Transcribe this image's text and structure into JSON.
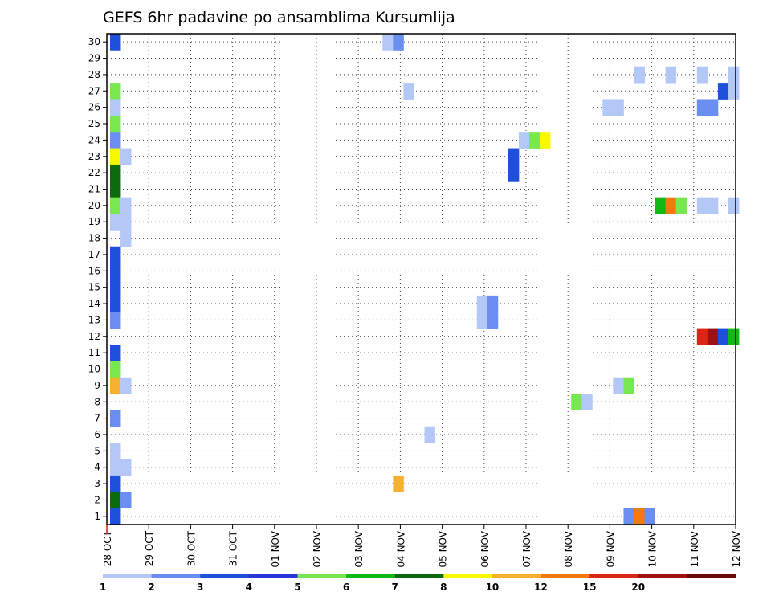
{
  "chart_data": {
    "type": "heatmap",
    "title": "GEFS 6hr padavine po ansamblima Kursumlija",
    "x_labels": [
      "28 OCT",
      "29 OCT",
      "30 OCT",
      "31 OCT",
      "01 NOV",
      "02 NOV",
      "03 NOV",
      "04 NOV",
      "05 NOV",
      "06 NOV",
      "07 NOV",
      "08 NOV",
      "09 NOV",
      "10 NOV",
      "11 NOV",
      "12 NOV"
    ],
    "y_labels": [
      "1",
      "2",
      "3",
      "4",
      "5",
      "6",
      "7",
      "8",
      "9",
      "10",
      "11",
      "12",
      "13",
      "14",
      "15",
      "16",
      "17",
      "18",
      "19",
      "20",
      "21",
      "22",
      "23",
      "24",
      "25",
      "26",
      "27",
      "28",
      "29",
      "30"
    ],
    "x_unit": "6-hour step index from 28 OCT 00",
    "y_unit": "ensemble member",
    "grid": true,
    "colorbar": {
      "labels": [
        "1",
        "2",
        "3",
        "4",
        "5",
        "6",
        "7",
        "8",
        "10",
        "12",
        "15",
        "20"
      ],
      "colors": [
        "#b4c8f8",
        "#6a8ff0",
        "#1e50dc",
        "#2838d8",
        "#78e850",
        "#14b814",
        "#0a6c0a",
        "#f8f800",
        "#f8b030",
        "#f87810",
        "#d82814",
        "#a01010",
        "#6e0a0a"
      ]
    },
    "cells": [
      {
        "m": 30,
        "t": 0,
        "c": 3
      },
      {
        "m": 27,
        "t": 0,
        "c": 5
      },
      {
        "m": 26,
        "t": 0,
        "c": 1
      },
      {
        "m": 25,
        "t": 0,
        "c": 5
      },
      {
        "m": 24,
        "t": 0,
        "c": 2
      },
      {
        "m": 23,
        "t": 0,
        "c": 8
      },
      {
        "m": 23,
        "t": 1,
        "c": 1
      },
      {
        "m": 22,
        "t": 0,
        "c": 7
      },
      {
        "m": 21,
        "t": 0,
        "c": 7
      },
      {
        "m": 20,
        "t": 0,
        "c": 5
      },
      {
        "m": 20,
        "t": 1,
        "c": 1
      },
      {
        "m": 19,
        "t": 0,
        "c": 1
      },
      {
        "m": 19,
        "t": 1,
        "c": 1
      },
      {
        "m": 18,
        "t": 1,
        "c": 1
      },
      {
        "m": 17,
        "t": 0,
        "c": 3
      },
      {
        "m": 16,
        "t": 0,
        "c": 3
      },
      {
        "m": 15,
        "t": 0,
        "c": 3
      },
      {
        "m": 14,
        "t": 0,
        "c": 3
      },
      {
        "m": 13,
        "t": 0,
        "c": 2
      },
      {
        "m": 11,
        "t": 0,
        "c": 3
      },
      {
        "m": 10,
        "t": 0,
        "c": 5
      },
      {
        "m": 9,
        "t": 0,
        "c": 9
      },
      {
        "m": 9,
        "t": 1,
        "c": 1
      },
      {
        "m": 7,
        "t": 0,
        "c": 2
      },
      {
        "m": 5,
        "t": 0,
        "c": 1
      },
      {
        "m": 4,
        "t": 0,
        "c": 1
      },
      {
        "m": 4,
        "t": 1,
        "c": 1
      },
      {
        "m": 3,
        "t": 0,
        "c": 3
      },
      {
        "m": 2,
        "t": 0,
        "c": 7
      },
      {
        "m": 2,
        "t": 1,
        "c": 2
      },
      {
        "m": 1,
        "t": 0,
        "c": 3
      },
      {
        "m": 30,
        "t": 26,
        "c": 1
      },
      {
        "m": 30,
        "t": 27,
        "c": 2
      },
      {
        "m": 27,
        "t": 28,
        "c": 1
      },
      {
        "m": 3,
        "t": 27,
        "c": 9
      },
      {
        "m": 6,
        "t": 30,
        "c": 1
      },
      {
        "m": 14,
        "t": 35,
        "c": 1
      },
      {
        "m": 13,
        "t": 35,
        "c": 1
      },
      {
        "m": 14,
        "t": 36,
        "c": 2
      },
      {
        "m": 13,
        "t": 36,
        "c": 2
      },
      {
        "m": 23,
        "t": 38,
        "c": 3
      },
      {
        "m": 22,
        "t": 38,
        "c": 3
      },
      {
        "m": 24,
        "t": 39,
        "c": 1
      },
      {
        "m": 24,
        "t": 40,
        "c": 5
      },
      {
        "m": 24,
        "t": 41,
        "c": 8
      },
      {
        "m": 8,
        "t": 44,
        "c": 5
      },
      {
        "m": 8,
        "t": 45,
        "c": 1
      },
      {
        "m": 26,
        "t": 47,
        "c": 1
      },
      {
        "m": 26,
        "t": 48,
        "c": 1
      },
      {
        "m": 9,
        "t": 48,
        "c": 1
      },
      {
        "m": 9,
        "t": 49,
        "c": 5
      },
      {
        "m": 1,
        "t": 49,
        "c": 2
      },
      {
        "m": 1,
        "t": 50,
        "c": 10
      },
      {
        "m": 1,
        "t": 51,
        "c": 2
      },
      {
        "m": 28,
        "t": 50,
        "c": 1
      },
      {
        "m": 28,
        "t": 53,
        "c": 1
      },
      {
        "m": 20,
        "t": 52,
        "c": 6
      },
      {
        "m": 20,
        "t": 53,
        "c": 10
      },
      {
        "m": 20,
        "t": 54,
        "c": 5
      },
      {
        "m": 28,
        "t": 56,
        "c": 1
      },
      {
        "m": 26,
        "t": 56,
        "c": 2
      },
      {
        "m": 26,
        "t": 57,
        "c": 2
      },
      {
        "m": 20,
        "t": 56,
        "c": 1
      },
      {
        "m": 20,
        "t": 57,
        "c": 1
      },
      {
        "m": 20,
        "t": 59,
        "c": 1
      },
      {
        "m": 27,
        "t": 58,
        "c": 3
      },
      {
        "m": 27,
        "t": 59,
        "c": 1
      },
      {
        "m": 28,
        "t": 59,
        "c": 1
      },
      {
        "m": 12,
        "t": 56,
        "c": 11
      },
      {
        "m": 12,
        "t": 57,
        "c": 12
      },
      {
        "m": 12,
        "t": 58,
        "c": 3
      },
      {
        "m": 12,
        "t": 59,
        "c": 6
      }
    ]
  }
}
